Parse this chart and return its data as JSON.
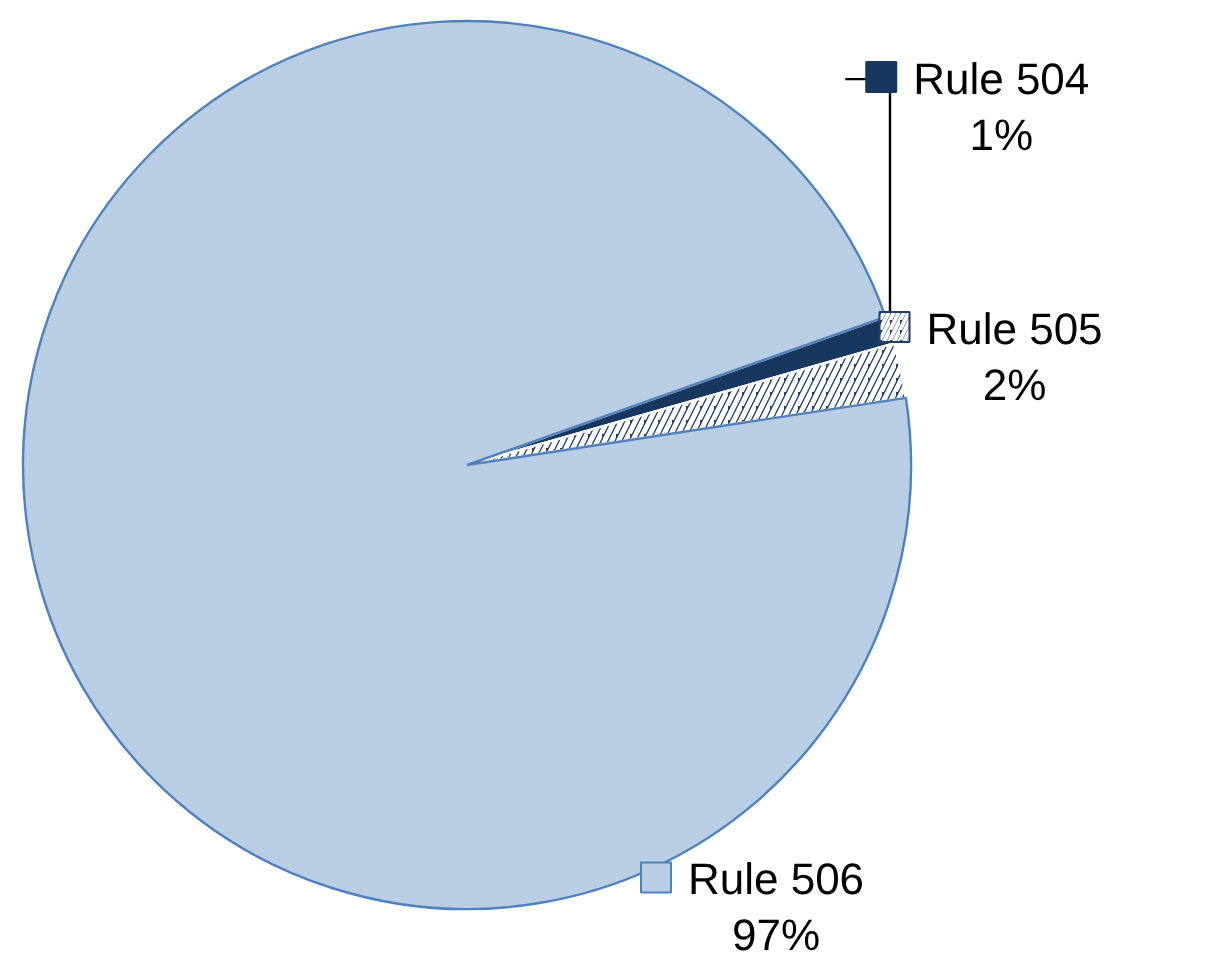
{
  "chart_data": {
    "type": "pie",
    "categories": [
      "Rule 504",
      "Rule 505",
      "Rule 506"
    ],
    "values": [
      1,
      2,
      97
    ],
    "value_labels": [
      "1%",
      "2%",
      "97%"
    ],
    "colors": [
      "#17375e",
      "#243f66",
      "#b9cde5"
    ],
    "legend": "right"
  }
}
